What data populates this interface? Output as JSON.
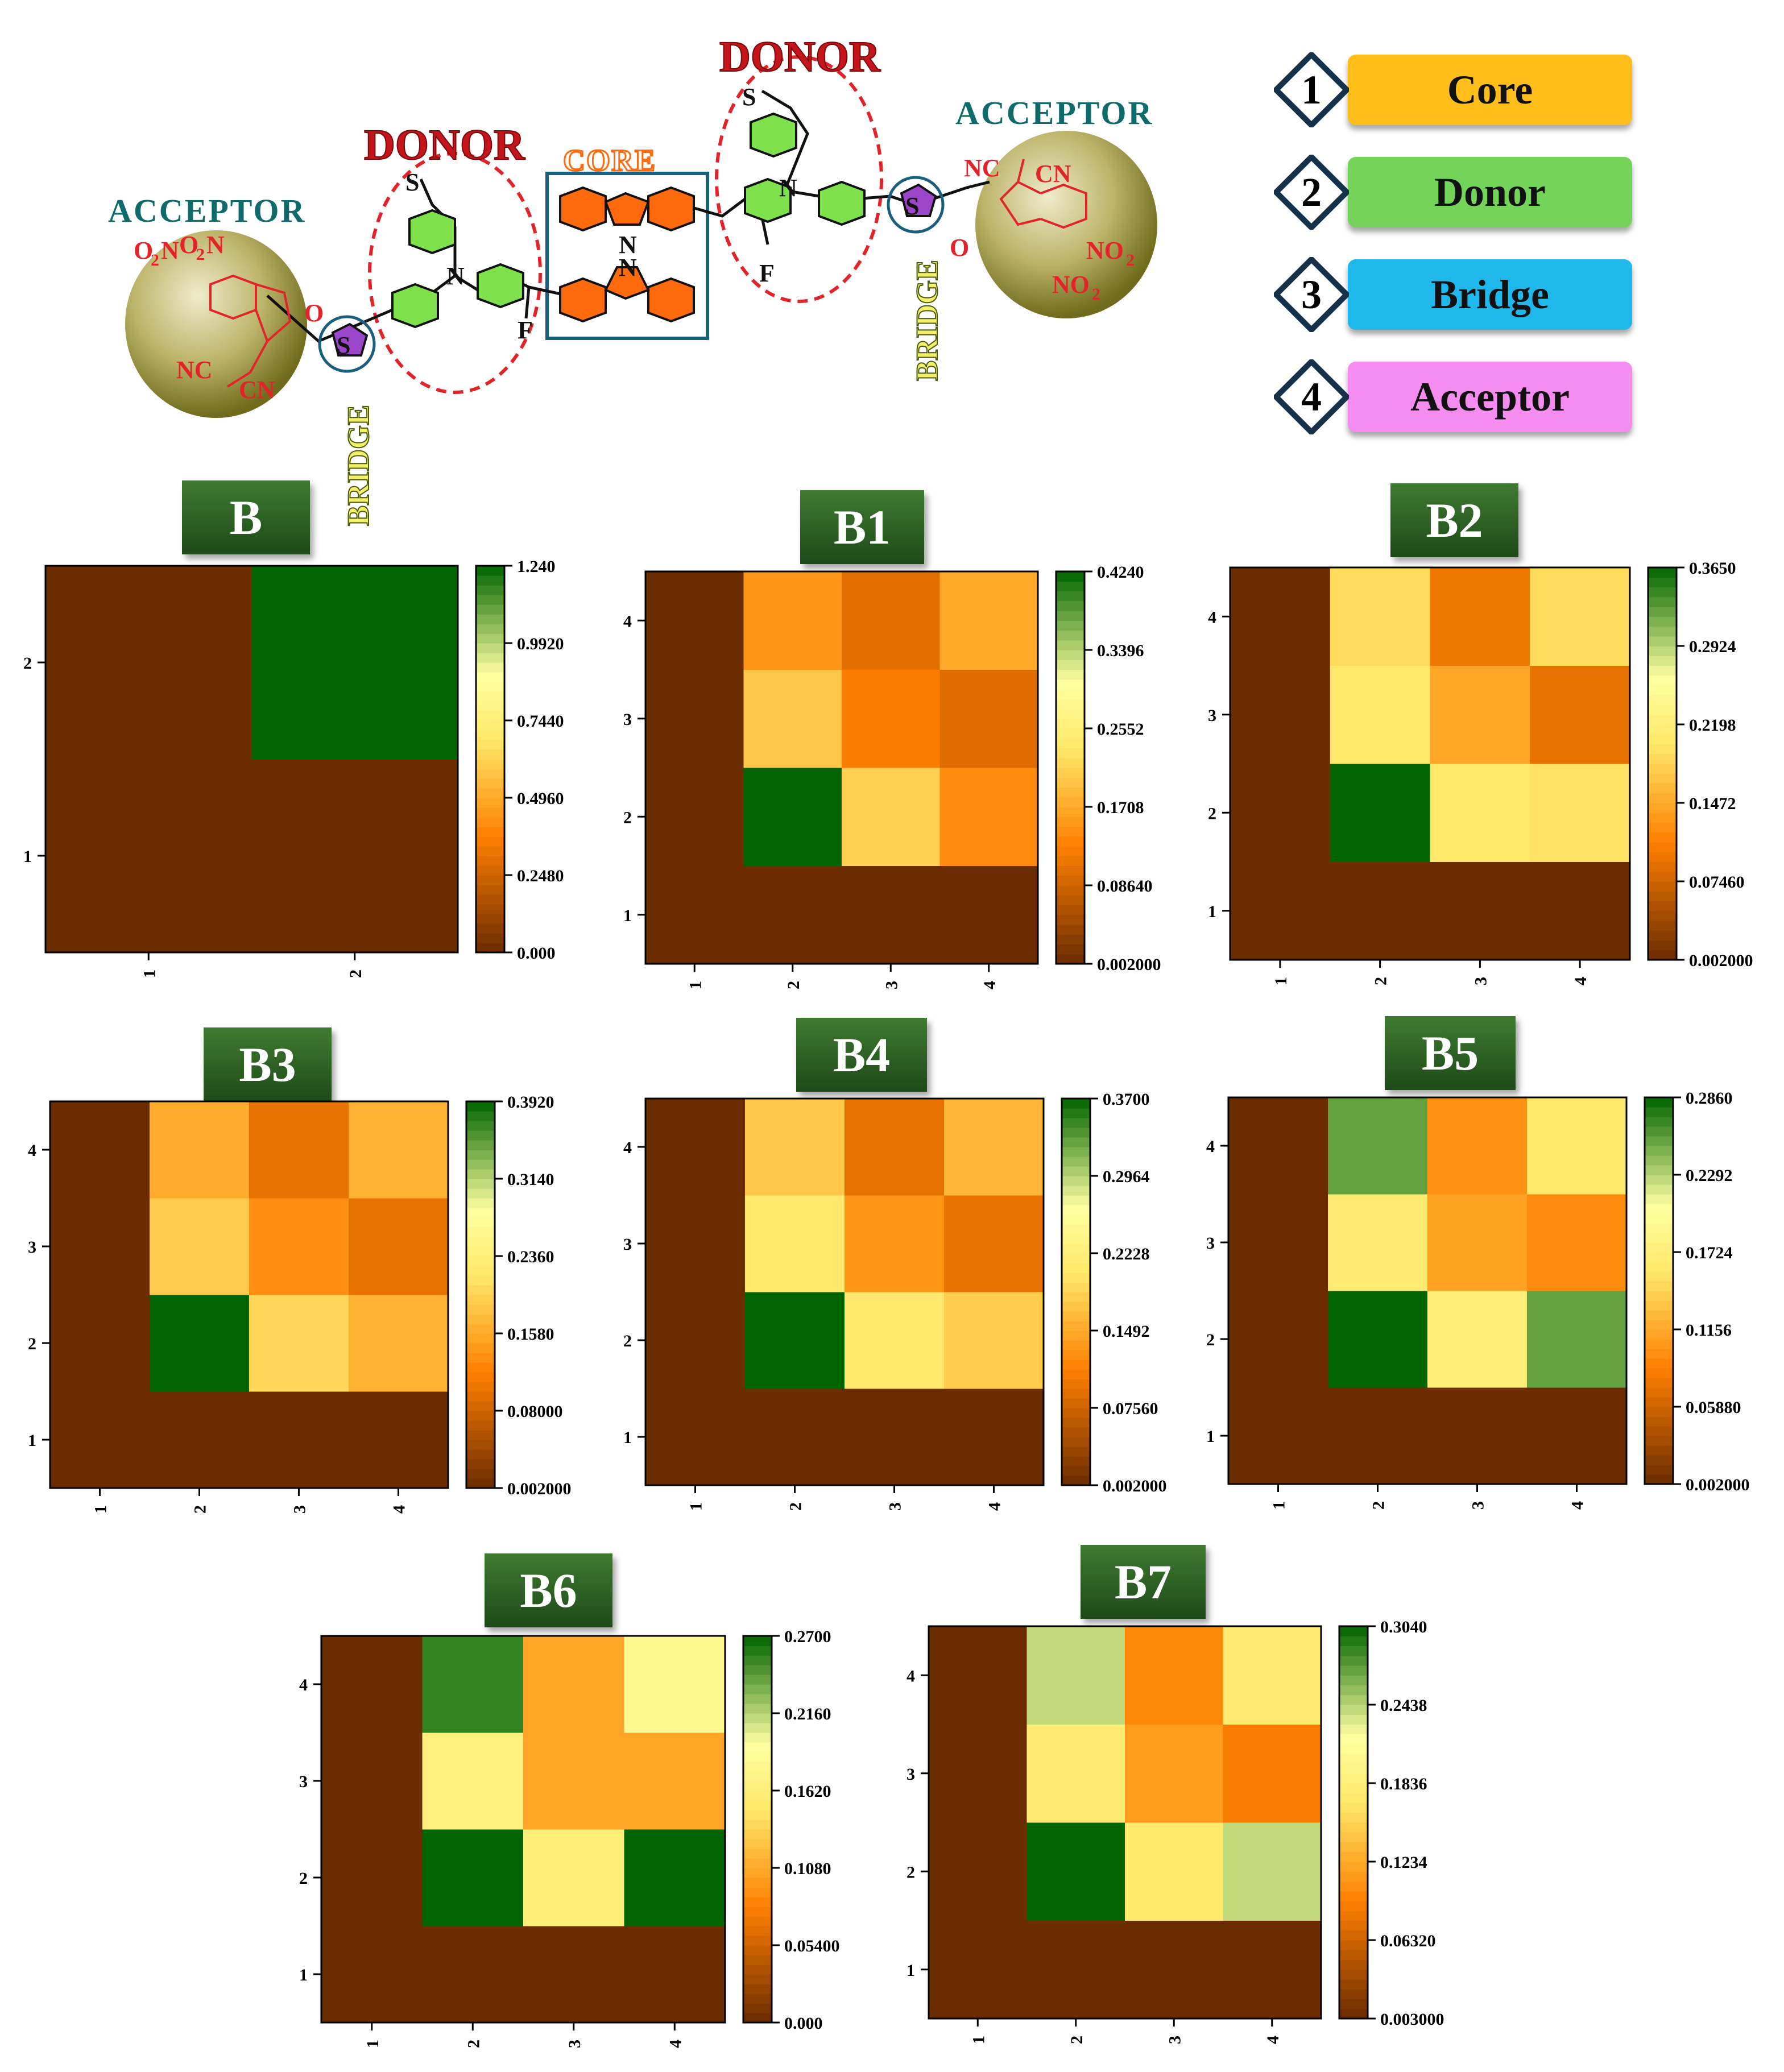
{
  "scheme": {
    "acceptor_left": "ACCEPTOR",
    "acceptor_right": "ACCEPTOR",
    "donor_left": "DONOR",
    "donor_right": "DONOR",
    "core": "CORE",
    "bridge_left": "BRIDGE",
    "bridge_right": "BRIDGE"
  },
  "legend": [
    {
      "num": "1",
      "label": "Core",
      "color": "#ffbe1a"
    },
    {
      "num": "2",
      "label": "Donor",
      "color": "#74d45a"
    },
    {
      "num": "3",
      "label": "Bridge",
      "color": "#1fb8ea"
    },
    {
      "num": "4",
      "label": "Acceptor",
      "color": "#f58cf0"
    }
  ],
  "colormap": [
    "#6b2c00",
    "#ff7f00",
    "#ffe86a",
    "#ffffa0",
    "#006400"
  ],
  "chart_data": [
    {
      "type": "heatmap",
      "title": "B",
      "x": [
        "1",
        "2"
      ],
      "y": [
        "1",
        "2"
      ],
      "values": [
        [
          0,
          0
        ],
        [
          0,
          1.24
        ]
      ],
      "colorbar_ticks": [
        "1.240",
        "0.9920",
        "0.7440",
        "0.4960",
        "0.2480",
        "0.000"
      ],
      "vmin": 0.0,
      "vmax": 1.24
    },
    {
      "type": "heatmap",
      "title": "B1",
      "x": [
        "1",
        "2",
        "3",
        "4"
      ],
      "y": [
        "1",
        "2",
        "3",
        "4"
      ],
      "values": [
        [
          0,
          0,
          0,
          0
        ],
        [
          0,
          0.424,
          0.21,
          0.14
        ],
        [
          0,
          0.2,
          0.125,
          0.1
        ],
        [
          0,
          0.15,
          0.105,
          0.17
        ]
      ],
      "colorbar_ticks": [
        "0.4240",
        "0.3396",
        "0.2552",
        "0.1708",
        "0.08640",
        "0.002000"
      ],
      "vmin": 0.002,
      "vmax": 0.424
    },
    {
      "type": "heatmap",
      "title": "B2",
      "x": [
        "1",
        "2",
        "3",
        "4"
      ],
      "y": [
        "1",
        "2",
        "3",
        "4"
      ],
      "values": [
        [
          0,
          0,
          0,
          0
        ],
        [
          0,
          0.365,
          0.205,
          0.195
        ],
        [
          0,
          0.205,
          0.145,
          0.095
        ],
        [
          0,
          0.19,
          0.1,
          0.19
        ]
      ],
      "colorbar_ticks": [
        "0.3650",
        "0.2924",
        "0.2198",
        "0.1472",
        "0.07460",
        "0.002000"
      ],
      "vmin": 0.002,
      "vmax": 0.365
    },
    {
      "type": "heatmap",
      "title": "B3",
      "x": [
        "1",
        "2",
        "3",
        "4"
      ],
      "y": [
        "1",
        "2",
        "3",
        "4"
      ],
      "values": [
        [
          0,
          0,
          0,
          0
        ],
        [
          0,
          0.392,
          0.2,
          0.165
        ],
        [
          0,
          0.19,
          0.135,
          0.1
        ],
        [
          0,
          0.16,
          0.1,
          0.165
        ]
      ],
      "colorbar_ticks": [
        "0.3920",
        "0.3140",
        "0.2360",
        "0.1580",
        "0.08000",
        "0.002000"
      ],
      "vmin": 0.002,
      "vmax": 0.392
    },
    {
      "type": "heatmap",
      "title": "B4",
      "x": [
        "1",
        "2",
        "3",
        "4"
      ],
      "y": [
        "1",
        "2",
        "3",
        "4"
      ],
      "values": [
        [
          0,
          0,
          0,
          0
        ],
        [
          0,
          0.37,
          0.205,
          0.18
        ],
        [
          0,
          0.205,
          0.13,
          0.095
        ],
        [
          0,
          0.175,
          0.095,
          0.16
        ]
      ],
      "colorbar_ticks": [
        "0.3700",
        "0.2964",
        "0.2228",
        "0.1492",
        "0.07560",
        "0.002000"
      ],
      "vmin": 0.002,
      "vmax": 0.37
    },
    {
      "type": "heatmap",
      "title": "B5",
      "x": [
        "1",
        "2",
        "3",
        "4"
      ],
      "y": [
        "1",
        "2",
        "3",
        "4"
      ],
      "values": [
        [
          0,
          0,
          0,
          0
        ],
        [
          0,
          0.286,
          0.17,
          0.255
        ],
        [
          0,
          0.165,
          0.11,
          0.095
        ],
        [
          0,
          0.255,
          0.1,
          0.16
        ]
      ],
      "colorbar_ticks": [
        "0.2860",
        "0.2292",
        "0.1724",
        "0.1156",
        "0.05880",
        "0.002000"
      ],
      "vmin": 0.002,
      "vmax": 0.286
    },
    {
      "type": "heatmap",
      "title": "B6",
      "x": [
        "1",
        "2",
        "3",
        "4"
      ],
      "y": [
        "1",
        "2",
        "3",
        "4"
      ],
      "values": [
        [
          0,
          0,
          0,
          0
        ],
        [
          0,
          0.27,
          0.16,
          0.27
        ],
        [
          0,
          0.165,
          0.105,
          0.105
        ],
        [
          0,
          0.255,
          0.105,
          0.18
        ]
      ],
      "colorbar_ticks": [
        "0.2700",
        "0.2160",
        "0.1620",
        "0.1080",
        "0.05400",
        "0.000"
      ],
      "vmin": 0.0,
      "vmax": 0.27
    },
    {
      "type": "heatmap",
      "title": "B7",
      "x": [
        "1",
        "2",
        "3",
        "4"
      ],
      "y": [
        "1",
        "2",
        "3",
        "4"
      ],
      "values": [
        [
          0,
          0,
          0,
          0
        ],
        [
          0,
          0.304,
          0.17,
          0.24
        ],
        [
          0,
          0.175,
          0.115,
          0.09
        ],
        [
          0,
          0.24,
          0.1,
          0.175
        ]
      ],
      "colorbar_ticks": [
        "0.3040",
        "0.2438",
        "0.1836",
        "0.1234",
        "0.06320",
        "0.003000"
      ],
      "vmin": 0.003,
      "vmax": 0.304
    }
  ]
}
